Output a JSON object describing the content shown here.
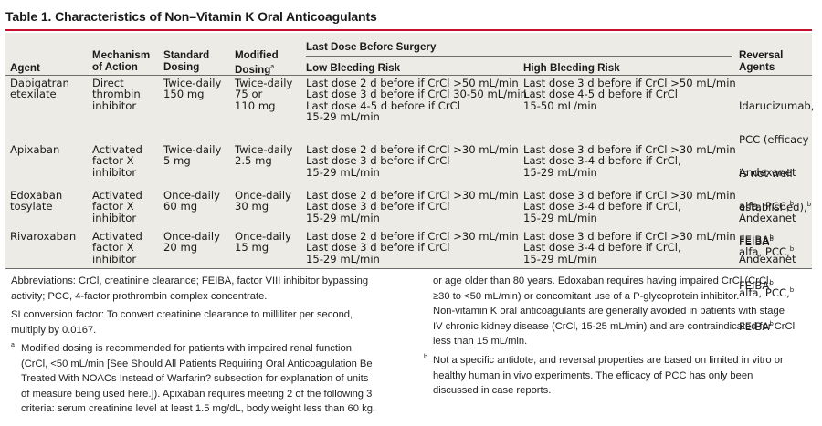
{
  "title": "Table 1. Characteristics of Non–Vitamin K Oral Anticoagulants",
  "colors": {
    "accent": "#c8102e",
    "table_bg": "#ecebe6"
  },
  "headers": {
    "agent": "Agent",
    "mechanism": [
      "Mechanism",
      "of Action"
    ],
    "standard": [
      "Standard",
      "Dosing"
    ],
    "modified": [
      "Modified",
      "Dosing"
    ],
    "modified_sup": "a",
    "last_dose": "Last Dose Before Surgery",
    "low": "Low Bleeding Risk",
    "high": "High Bleeding Risk",
    "reversal": [
      "Reversal",
      "Agents"
    ]
  },
  "rows": [
    {
      "agent": "Dabigatran\netexilate",
      "mechanism": "Direct\nthrombin\ninhibitor",
      "standard": "Twice-daily\n150 mg",
      "modified": "Twice-daily\n75 or\n110 mg",
      "low": "Last dose 2 d before if CrCl >50 mL/min\nLast dose 3 d before if CrCl 30-50 mL/min\nLast dose 4-5 d before if CrCl\n15-29 mL/min",
      "high": "Last dose 3 d before if CrCl >50 mL/min\nLast dose 4-5 d before if CrCl\n15-50 mL/min",
      "reversal": [
        "Idarucizumab,",
        "PCC (efficacy",
        "is not well",
        "established),",
        "FEIBA"
      ],
      "reversal_sups": [
        "",
        "",
        "",
        "b",
        "b"
      ]
    },
    {
      "agent": "Apixaban",
      "mechanism": "Activated\nfactor X\ninhibitor",
      "standard": "Twice-daily\n5 mg",
      "modified": "Twice-daily\n2.5 mg",
      "low": "Last dose 2 d before if CrCl >30 mL/min\nLast dose 3 d before if CrCl\n15-29 mL/min",
      "high": "Last dose 3 d before if CrCl >30 mL/min\nLast dose 3-4 d before if CrCl,\n15-29 mL/min",
      "reversal": [
        "Andexanet",
        "alfa, PCC,",
        "FEIBA"
      ],
      "reversal_sups": [
        "",
        "b",
        "b"
      ]
    },
    {
      "agent": "Edoxaban\ntosylate",
      "mechanism": "Activated\nfactor X\ninhibitor",
      "standard": "Once-daily\n60 mg",
      "modified": "Once-daily\n30 mg",
      "low": "Last dose 2 d before if CrCl >30 mL/min\nLast dose 3 d before if CrCl\n15-29 mL/min",
      "high": "Last dose 3 d before if CrCl >30 mL/min\nLast dose 3-4 d before if CrCl,\n15-29 mL/min",
      "reversal": [
        "Andexanet",
        "alfa, PCC,",
        "FEIBA"
      ],
      "reversal_sups": [
        "",
        "b",
        "b"
      ]
    },
    {
      "agent": "Rivaroxaban",
      "mechanism": "Activated\nfactor X\ninhibitor",
      "standard": "Once-daily\n20 mg",
      "modified": "Once-daily\n15 mg",
      "low": "Last dose 2 d before if CrCl >30 mL/min\nLast dose 3 d before if CrCl\n15-29 mL/min",
      "high": "Last dose 3 d before if CrCl >30 mL/min\nLast dose 3-4 d before if CrCl,\n15-29 mL/min",
      "reversal": [
        "Andexanet",
        "alfa, PCC,",
        "FEIBA"
      ],
      "reversal_sups": [
        "",
        "b",
        "b"
      ]
    }
  ],
  "footnotes": {
    "abbreviations": "Abbreviations: CrCl, creatinine clearance; FEIBA, factor VIII inhibitor bypassing\nactivity; PCC, 4-factor prothrombin complex concentrate.",
    "si": "SI conversion factor: To convert creatinine clearance to milliliter per second,\nmultiply by 0.0167.",
    "a_marker": "a",
    "a_text": "Modified dosing is recommended for patients with impaired renal function\n(CrCl, <50 mL/min [See Should All Patients Requiring Oral Anticoagulation Be\nTreated With NOACs Instead of Warfarin? subsection for explanation of units\nof measure being used here.]). Apixaban requires meeting 2 of the following 3\ncriteria: serum creatinine level at least 1.5 mg/dL, body weight less than 60 kg,",
    "a_continued": "or age older than 80 years. Edoxaban requires having impaired CrCl (CrCl,\n≥30 to <50 mL/min) or concomitant use of a P-glycoprotein inhibitor.\nNon-vitamin K oral anticoagulants are generally avoided in patients with stage\nIV chronic kidney disease (CrCl, 15-25 mL/min) and are contraindicated for CrCl\nless than 15 mL/min.",
    "b_marker": "b",
    "b_text": "Not a specific antidote, and reversal properties are based on limited in vitro or\nhealthy human in vivo experiments. The efficacy of PCC has only been\ndiscussed in case reports."
  }
}
